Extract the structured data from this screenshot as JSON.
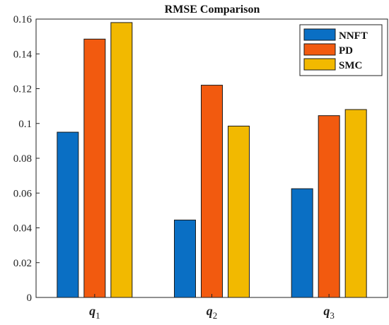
{
  "chart_data": {
    "type": "bar",
    "title": "RMSE Comparison",
    "xlabel": "",
    "ylabel": "",
    "categories": [
      {
        "base": "q",
        "sub": "1"
      },
      {
        "base": "q",
        "sub": "2"
      },
      {
        "base": "q",
        "sub": "3"
      }
    ],
    "series": [
      {
        "name": "NNFT",
        "color": "#0a6fc4",
        "values": [
          0.095,
          0.0445,
          0.0625
        ]
      },
      {
        "name": "PD",
        "color": "#f25a0f",
        "values": [
          0.1485,
          0.122,
          0.1045
        ]
      },
      {
        "name": "SMC",
        "color": "#f2b900",
        "values": [
          0.158,
          0.0985,
          0.108
        ]
      }
    ],
    "ylim": [
      0,
      0.16
    ],
    "yticks": [
      "0",
      "0.02",
      "0.04",
      "0.06",
      "0.08",
      "0.1",
      "0.12",
      "0.14",
      "0.16"
    ],
    "grid": false,
    "legend_position": "top-right"
  }
}
